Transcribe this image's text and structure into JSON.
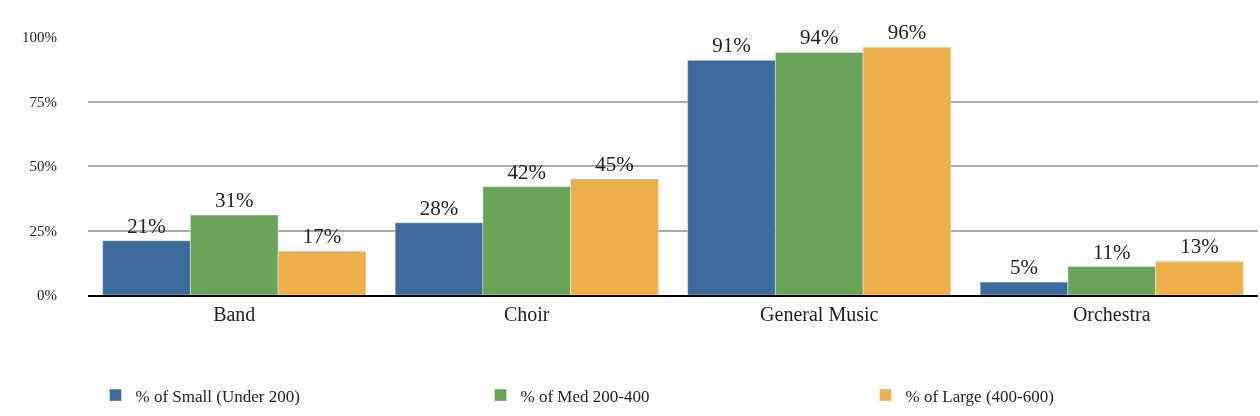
{
  "chart_data": {
    "type": "bar",
    "categories": [
      "Band",
      "Choir",
      "General Music",
      "Orchestra"
    ],
    "series": [
      {
        "name": "% of Small (Under 200)",
        "color": "#3d6b9c",
        "values": [
          21,
          28,
          91,
          5
        ]
      },
      {
        "name": "% of Med 200-400",
        "color": "#6aa459",
        "values": [
          31,
          42,
          94,
          11
        ]
      },
      {
        "name": "% of Large (400-600)",
        "color": "#edb04b",
        "values": [
          17,
          45,
          96,
          13
        ]
      }
    ],
    "ylim": [
      0,
      100
    ],
    "yticks": [
      {
        "value": 0,
        "label": "0%"
      },
      {
        "value": 25,
        "label": "25%"
      },
      {
        "value": 50,
        "label": "50%"
      },
      {
        "value": 75,
        "label": "75%"
      },
      {
        "value": 100,
        "label": "100%"
      }
    ],
    "value_labels": [
      [
        "21%",
        "28%",
        "91%",
        "5%"
      ],
      [
        "31%",
        "42%",
        "94%",
        "11%"
      ],
      [
        "17%",
        "45%",
        "96%",
        "13%"
      ]
    ],
    "grid": "y",
    "legend": "bottom"
  }
}
